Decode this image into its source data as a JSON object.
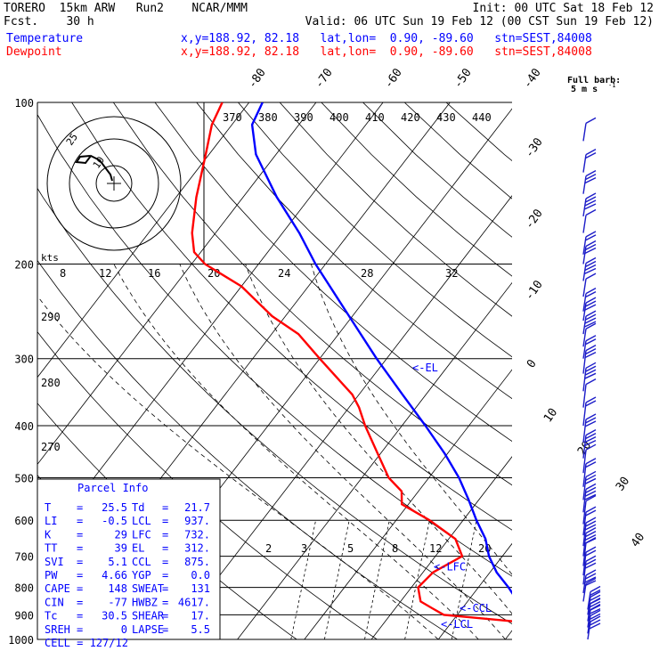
{
  "header": {
    "line1_left": "TORERO  15km ARW   Run2    NCAR/MMM",
    "line1_right": "Init: 00 UTC Sat 18 Feb 12",
    "line2_left": "Fcst.    30 h",
    "line2_right": "Valid: 06 UTC Sun 19 Feb 12 (00 CST Sun 19 Feb 12)",
    "temp_label": "Temperature",
    "temp_info": "x,y=188.92, 82.18   lat,lon=  0.90, -89.60   stn=SEST,84008",
    "dew_label": "Dewpoint",
    "dew_info": "x,y=188.92, 82.18   lat,lon=  0.90, -89.60   stn=SEST,84008"
  },
  "colors": {
    "temperature": "#0000ff",
    "dewpoint": "#ff0000",
    "wind_barbs": "#1c1cc8",
    "grid": "#000000",
    "moist_adiabat": "#000000",
    "mixing_ratio": "#000000"
  },
  "chart_data": {
    "type": "line",
    "title": "",
    "ylabel": "",
    "xlabel": "",
    "y_scale": "log-pressure",
    "pressure_levels": [
      100,
      200,
      300,
      400,
      500,
      600,
      700,
      800,
      900,
      1000
    ],
    "pressure_tick_labels": [
      "100",
      "200",
      "300",
      "400",
      "500",
      "600",
      "700",
      "800",
      "900",
      "1000"
    ],
    "isotherm_labels": [
      "-80",
      "-70",
      "-60",
      "-50",
      "-40",
      "-30",
      "-20",
      "-10",
      "0",
      "10",
      "20",
      "30",
      "40"
    ],
    "isotherm_values": [
      -80,
      -70,
      -60,
      -50,
      -40,
      -30,
      -20,
      -10,
      0,
      10,
      20,
      30,
      40
    ],
    "theta_e_labels": [
      "370",
      "380",
      "390",
      "400",
      "410",
      "420",
      "430",
      "440"
    ],
    "theta_labels": [
      "290",
      "280",
      "270"
    ],
    "wind_speed_labels": [
      "8",
      "12",
      "16",
      "20",
      "24",
      "28",
      "32"
    ],
    "wind_speed_units": "kts",
    "mixing_ratio_labels": [
      "2",
      "3",
      "5",
      "8",
      "12",
      "20"
    ],
    "full_barb_label": "Full barb:",
    "full_barb_value": "5 m s",
    "full_barb_exp": "-1",
    "hodograph": {
      "ring_labels": [
        "25",
        "10"
      ]
    },
    "series": [
      {
        "name": "Temperature",
        "points": [
          {
            "p": 1000,
            "t": 27.0
          },
          {
            "p": 975,
            "t": 24.6
          },
          {
            "p": 950,
            "t": 22.8
          },
          {
            "p": 925,
            "t": 21.5
          },
          {
            "p": 900,
            "t": 20.5
          },
          {
            "p": 850,
            "t": 17.5
          },
          {
            "p": 800,
            "t": 14.5
          },
          {
            "p": 750,
            "t": 11.0
          },
          {
            "p": 700,
            "t": 8.0
          },
          {
            "p": 650,
            "t": 5.5
          },
          {
            "p": 600,
            "t": 2.0
          },
          {
            "p": 550,
            "t": -1.5
          },
          {
            "p": 500,
            "t": -5.5
          },
          {
            "p": 450,
            "t": -10.5
          },
          {
            "p": 400,
            "t": -16.5
          },
          {
            "p": 350,
            "t": -23.5
          },
          {
            "p": 300,
            "t": -31.5
          },
          {
            "p": 250,
            "t": -40.5
          },
          {
            "p": 200,
            "t": -51.5
          },
          {
            "p": 175,
            "t": -57.5
          },
          {
            "p": 150,
            "t": -65.0
          },
          {
            "p": 125,
            "t": -73.0
          },
          {
            "p": 110,
            "t": -77.0
          },
          {
            "p": 100,
            "t": -78.0
          }
        ]
      },
      {
        "name": "Dewpoint",
        "points": [
          {
            "p": 1000,
            "t": 21.7
          },
          {
            "p": 975,
            "t": 21.5
          },
          {
            "p": 950,
            "t": 21.0
          },
          {
            "p": 925,
            "t": 19.0
          },
          {
            "p": 900,
            "t": 8.0
          },
          {
            "p": 875,
            "t": 5.5
          },
          {
            "p": 850,
            "t": 3.0
          },
          {
            "p": 800,
            "t": 1.0
          },
          {
            "p": 750,
            "t": 1.5
          },
          {
            "p": 700,
            "t": 4.0
          },
          {
            "p": 650,
            "t": 1.0
          },
          {
            "p": 600,
            "t": -5.0
          },
          {
            "p": 560,
            "t": -11.0
          },
          {
            "p": 530,
            "t": -12.5
          },
          {
            "p": 500,
            "t": -16.0
          },
          {
            "p": 450,
            "t": -20.5
          },
          {
            "p": 400,
            "t": -25.5
          },
          {
            "p": 370,
            "t": -28.5
          },
          {
            "p": 350,
            "t": -31.0
          },
          {
            "p": 300,
            "t": -40.0
          },
          {
            "p": 270,
            "t": -46.0
          },
          {
            "p": 250,
            "t": -52.0
          },
          {
            "p": 220,
            "t": -60.0
          },
          {
            "p": 200,
            "t": -68.0
          },
          {
            "p": 190,
            "t": -71.0
          },
          {
            "p": 175,
            "t": -73.5
          },
          {
            "p": 150,
            "t": -77.0
          },
          {
            "p": 125,
            "t": -80.5
          },
          {
            "p": 110,
            "t": -83.0
          },
          {
            "p": 100,
            "t": -84.0
          }
        ]
      }
    ],
    "level_markers": [
      {
        "label": "<-EL",
        "p": 312
      },
      {
        "label": "<-LFC",
        "p": 732
      },
      {
        "label": "<-CCL",
        "p": 875
      },
      {
        "label": "<-LCL",
        "p": 937
      }
    ],
    "wind_barbs_p": [
      118,
      135,
      148,
      163,
      175,
      192,
      200,
      215,
      230,
      245,
      255,
      270,
      285,
      300,
      320,
      345,
      370,
      400,
      430,
      460,
      490,
      520,
      550,
      580,
      610,
      640,
      670,
      700,
      730,
      760,
      790,
      820,
      850,
      880,
      900,
      925,
      950,
      975,
      1000
    ]
  },
  "parcel": {
    "title": "Parcel Info",
    "rows": [
      {
        "k1": "T",
        "v1": "25.5",
        "k2": "Td",
        "v2": "21.7"
      },
      {
        "k1": "LI",
        "v1": "-0.5",
        "k2": "LCL",
        "v2": "937."
      },
      {
        "k1": "K",
        "v1": "29",
        "k2": "LFC",
        "v2": "732."
      },
      {
        "k1": "TT",
        "v1": "39",
        "k2": "EL",
        "v2": "312."
      },
      {
        "k1": "SVI",
        "v1": "5.1",
        "k2": "CCL",
        "v2": "875."
      },
      {
        "k1": "PW",
        "v1": "4.66",
        "k2": "YGP",
        "v2": "0.0"
      },
      {
        "k1": "CAPE",
        "v1": "148",
        "k2": "SWEAT",
        "v2": "131"
      },
      {
        "k1": "CIN",
        "v1": "-77",
        "k2": "HWBZ",
        "v2": "4617."
      },
      {
        "k1": "Tc",
        "v1": "30.5",
        "k2": "SHEAR",
        "v2": "17."
      },
      {
        "k1": "SREH",
        "v1": "0",
        "k2": "LAPSE",
        "v2": "5.5"
      }
    ],
    "cell": "CELL = 127/12"
  }
}
